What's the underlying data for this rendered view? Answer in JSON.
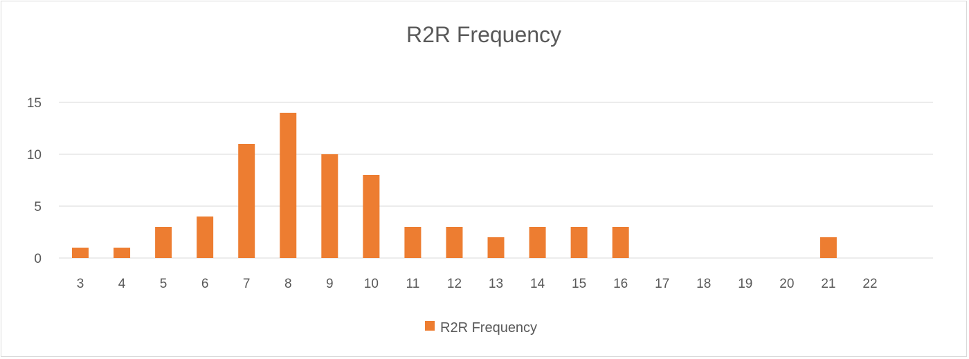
{
  "chart_data": {
    "type": "bar",
    "title": "R2R Frequency",
    "xlabel": "",
    "ylabel": "",
    "categories": [
      "3",
      "4",
      "5",
      "6",
      "7",
      "8",
      "9",
      "10",
      "11",
      "12",
      "13",
      "14",
      "15",
      "16",
      "17",
      "18",
      "19",
      "20",
      "21",
      "22"
    ],
    "series": [
      {
        "name": "R2R Frequency",
        "color": "#ed7d31",
        "values": [
          1,
          1,
          3,
          4,
          11,
          14,
          10,
          8,
          3,
          3,
          2,
          3,
          3,
          3,
          0,
          0,
          0,
          0,
          2,
          0
        ]
      }
    ],
    "ylim": [
      0,
      15
    ],
    "yticks": [
      0,
      5,
      10,
      15
    ],
    "grid": true,
    "legend_position": "bottom-center",
    "colors": {
      "bar": "#ed7d31",
      "grid": "#d9d9d9",
      "text": "#595959"
    }
  }
}
